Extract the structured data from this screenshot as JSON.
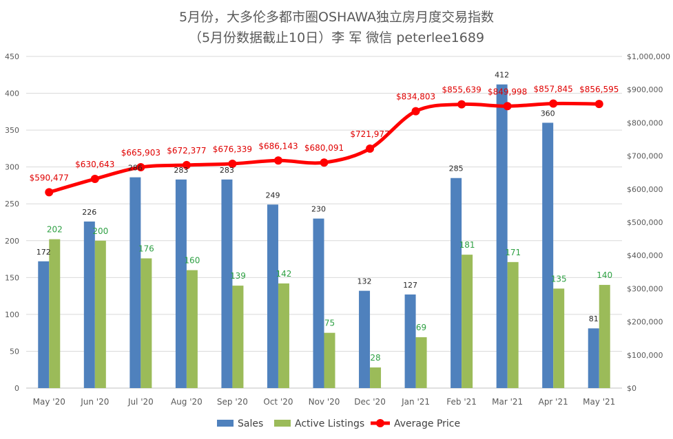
{
  "title": {
    "line1": "5月份，大多伦多都市圈OSHAWA独立房月度交易指数",
    "line2": "（5月份数据截止10日）李 军  微信  peterlee1689"
  },
  "colors": {
    "sales": "#4f81bd",
    "active_listings": "#9bbb59",
    "average_price": "#ff0000",
    "gridline": "#d9d9d9"
  },
  "chart_data": {
    "type": "bar",
    "categories": [
      "May '20",
      "Jun '20",
      "Jul '20",
      "Aug '20",
      "Sep '20",
      "Oct '20",
      "Nov '20",
      "Dec '20",
      "Jan '21",
      "Feb '21",
      "Mar '21",
      "Apr '21",
      "May '21"
    ],
    "series": [
      {
        "name": "Sales",
        "type": "bar",
        "axis": "left",
        "values": [
          172,
          226,
          286,
          283,
          283,
          249,
          230,
          132,
          127,
          285,
          412,
          360,
          81
        ],
        "labels": [
          "172",
          "226",
          "286",
          "283",
          "283",
          "249",
          "230",
          "132",
          "127",
          "285",
          "412",
          "360",
          "81"
        ]
      },
      {
        "name": "Active Listings",
        "type": "bar",
        "axis": "left",
        "values": [
          202,
          200,
          176,
          160,
          139,
          142,
          75,
          28,
          69,
          181,
          171,
          135,
          140
        ],
        "labels": [
          "202",
          "200",
          "176",
          "160",
          "139",
          "142",
          "75",
          "28",
          "69",
          "181",
          "171",
          "135",
          "140"
        ]
      },
      {
        "name": "Average Price",
        "type": "line",
        "axis": "right",
        "values": [
          590477,
          630643,
          665903,
          672377,
          676339,
          686143,
          680091,
          721977,
          834803,
          855639,
          849998,
          857845,
          856595
        ],
        "labels": [
          "$590,477",
          "$630,643",
          "$665,903",
          "$672,377",
          "$676,339",
          "$686,143",
          "$680,091",
          "$721,977",
          "$834,803",
          "$855,639",
          "$849,998",
          "$857,845",
          "$856,595"
        ]
      }
    ],
    "y_left": {
      "range": [
        0,
        450
      ],
      "ticks": [
        "0",
        "50",
        "100",
        "150",
        "200",
        "250",
        "300",
        "350",
        "400",
        "450"
      ]
    },
    "y_right": {
      "range": [
        0,
        1000000
      ],
      "ticks": [
        "$0",
        "$100,000",
        "$200,000",
        "$300,000",
        "$400,000",
        "$500,000",
        "$600,000",
        "$700,000",
        "$800,000",
        "$900,000",
        "$1,000,000"
      ]
    },
    "grid": true,
    "legend_position": "bottom",
    "legend": [
      "Sales",
      "Active Listings",
      "Average Price"
    ]
  }
}
